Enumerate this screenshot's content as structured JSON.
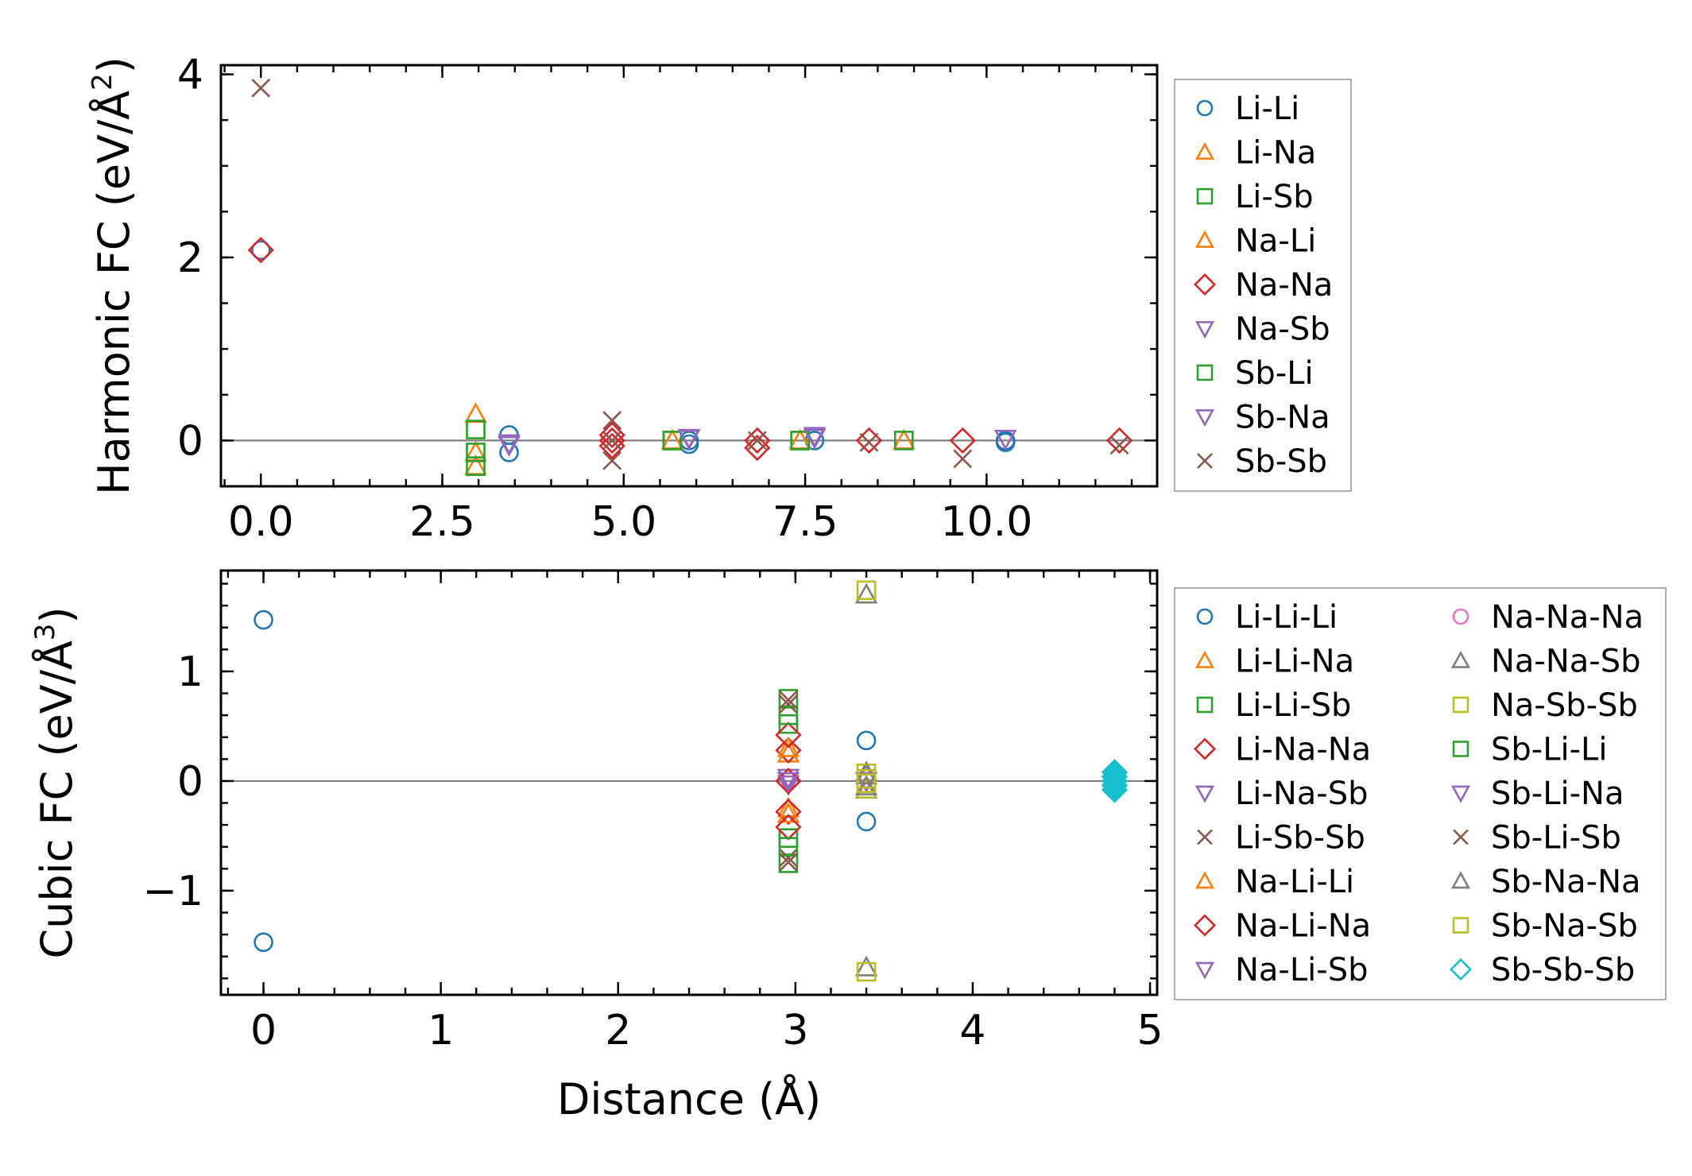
{
  "chart_data": [
    {
      "type": "scatter",
      "panel": "top",
      "ylabel": "Harmonic FC (eV/Å²)",
      "ylabel_parts": {
        "main": "Harmonic FC (eV/Å",
        "sup": "2",
        "close": ")"
      },
      "xlabel": "",
      "xlim": [
        -0.55,
        12.35
      ],
      "ylim": [
        -0.5,
        4.1
      ],
      "x_ticks": [
        0.0,
        2.5,
        5.0,
        7.5,
        10.0
      ],
      "x_tick_labels": [
        "0.0",
        "2.5",
        "5.0",
        "7.5",
        "10.0"
      ],
      "y_ticks": [
        0,
        2,
        4
      ],
      "y_tick_labels": [
        "0",
        "2",
        "4"
      ],
      "zero_line": true,
      "legend_columns": 1,
      "series": [
        {
          "name": "Li-Li",
          "marker": "circle",
          "color": "#1f77b4",
          "points": [
            [
              0.0,
              2.08
            ],
            [
              3.42,
              0.06
            ],
            [
              3.42,
              -0.13
            ],
            [
              5.9,
              0.0
            ],
            [
              5.9,
              -0.04
            ],
            [
              7.63,
              0.0
            ],
            [
              10.26,
              0.0
            ],
            [
              10.26,
              -0.02
            ]
          ]
        },
        {
          "name": "Li-Na",
          "marker": "triangle-up",
          "color": "#ff7f0e",
          "points": [
            [
              2.96,
              0.29
            ],
            [
              2.96,
              -0.13
            ],
            [
              2.96,
              -0.28
            ],
            [
              5.67,
              0.0
            ],
            [
              7.43,
              0.0
            ],
            [
              8.86,
              0.0
            ]
          ]
        },
        {
          "name": "Li-Sb",
          "marker": "square",
          "color": "#2ca02c",
          "points": [
            [
              2.96,
              0.12
            ],
            [
              2.96,
              -0.13
            ],
            [
              2.96,
              -0.28
            ],
            [
              5.67,
              0.0
            ],
            [
              7.43,
              0.0
            ],
            [
              8.86,
              0.0
            ]
          ]
        },
        {
          "name": "Na-Li",
          "marker": "triangle-up",
          "color": "#ff7f0e",
          "points": [
            [
              5.67,
              0.0
            ],
            [
              7.43,
              0.0
            ]
          ]
        },
        {
          "name": "Na-Na",
          "marker": "diamond",
          "color": "#d62728",
          "points": [
            [
              0.0,
              2.08
            ],
            [
              4.84,
              0.0
            ],
            [
              4.84,
              0.06
            ],
            [
              4.84,
              -0.06
            ],
            [
              6.84,
              0.0
            ],
            [
              6.84,
              -0.08
            ],
            [
              8.38,
              0.0
            ],
            [
              9.67,
              0.0
            ],
            [
              11.83,
              0.0
            ]
          ]
        },
        {
          "name": "Na-Sb",
          "marker": "triangle-down",
          "color": "#9467bd",
          "points": [
            [
              3.42,
              -0.03
            ],
            [
              5.9,
              0.03
            ],
            [
              7.63,
              0.05
            ],
            [
              10.26,
              0.02
            ]
          ]
        },
        {
          "name": "Sb-Li",
          "marker": "square",
          "color": "#2ca02c",
          "points": [
            [
              5.67,
              0.0
            ],
            [
              7.43,
              0.0
            ]
          ]
        },
        {
          "name": "Sb-Na",
          "marker": "triangle-down",
          "color": "#9467bd",
          "points": [
            [
              3.42,
              -0.05
            ],
            [
              5.9,
              0.02
            ],
            [
              7.63,
              0.03
            ]
          ]
        },
        {
          "name": "Sb-Sb",
          "marker": "x",
          "color": "#8c564b",
          "points": [
            [
              0.0,
              3.85
            ],
            [
              4.84,
              0.22
            ],
            [
              4.84,
              -0.22
            ],
            [
              4.84,
              0.0
            ],
            [
              6.84,
              0.0
            ],
            [
              8.38,
              -0.02
            ],
            [
              9.67,
              -0.2
            ],
            [
              11.83,
              -0.05
            ]
          ]
        }
      ]
    },
    {
      "type": "scatter",
      "panel": "bottom",
      "ylabel": "Cubic FC (eV/Å³)",
      "ylabel_parts": {
        "main": "Cubic FC (eV/Å",
        "sup": "3",
        "close": ")"
      },
      "xlabel": "Distance (Å)",
      "xlim": [
        -0.24,
        5.04
      ],
      "ylim": [
        -1.95,
        1.92
      ],
      "x_ticks": [
        0,
        1,
        2,
        3,
        4,
        5
      ],
      "x_tick_labels": [
        "0",
        "1",
        "2",
        "3",
        "4",
        "5"
      ],
      "y_ticks": [
        -1,
        0,
        1
      ],
      "y_tick_labels": [
        "−1",
        "0",
        "1"
      ],
      "zero_line": true,
      "legend_columns": 2,
      "series": [
        {
          "name": "Li-Li-Li",
          "marker": "circle",
          "color": "#1f77b4",
          "points": [
            [
              0.0,
              1.47
            ],
            [
              0.0,
              -1.47
            ],
            [
              3.4,
              0.37
            ],
            [
              3.4,
              -0.37
            ]
          ]
        },
        {
          "name": "Li-Li-Na",
          "marker": "triangle-up",
          "color": "#ff7f0e",
          "points": [
            [
              2.96,
              0.25
            ],
            [
              2.96,
              -0.25
            ]
          ]
        },
        {
          "name": "Li-Li-Sb",
          "marker": "square",
          "color": "#2ca02c",
          "points": [
            [
              2.96,
              0.75
            ],
            [
              2.96,
              0.52
            ],
            [
              2.96,
              -0.52
            ],
            [
              2.96,
              -0.75
            ]
          ]
        },
        {
          "name": "Li-Na-Na",
          "marker": "diamond",
          "color": "#d62728",
          "points": [
            [
              2.96,
              0.28
            ],
            [
              2.96,
              0.0
            ],
            [
              2.96,
              -0.28
            ]
          ]
        },
        {
          "name": "Li-Na-Sb",
          "marker": "triangle-down",
          "color": "#9467bd",
          "points": [
            [
              2.96,
              0.03
            ],
            [
              2.96,
              -0.03
            ]
          ]
        },
        {
          "name": "Li-Sb-Sb",
          "marker": "x",
          "color": "#8c564b",
          "points": [
            [
              2.96,
              0.7
            ],
            [
              2.96,
              -0.7
            ]
          ]
        },
        {
          "name": "Na-Li-Li",
          "marker": "triangle-up",
          "color": "#ff7f0e",
          "points": [
            [
              2.96,
              0.3
            ],
            [
              2.96,
              -0.3
            ]
          ]
        },
        {
          "name": "Na-Li-Na",
          "marker": "diamond",
          "color": "#d62728",
          "points": [
            [
              2.96,
              0.42
            ],
            [
              2.96,
              0.0
            ],
            [
              2.96,
              -0.42
            ]
          ]
        },
        {
          "name": "Na-Li-Sb",
          "marker": "triangle-down",
          "color": "#9467bd",
          "points": [
            [
              2.96,
              0.0
            ]
          ]
        },
        {
          "name": "Na-Na-Na",
          "marker": "circle",
          "color": "#e377c2",
          "points": []
        },
        {
          "name": "Na-Na-Sb",
          "marker": "triangle-up",
          "color": "#7f7f7f",
          "points": [
            [
              3.4,
              1.7
            ],
            [
              3.4,
              -1.7
            ],
            [
              3.4,
              0.08
            ],
            [
              3.4,
              -0.08
            ]
          ]
        },
        {
          "name": "Na-Sb-Sb",
          "marker": "square",
          "color": "#bcbd22",
          "points": [
            [
              3.4,
              1.74
            ],
            [
              3.4,
              -1.74
            ],
            [
              3.4,
              0.07
            ],
            [
              3.4,
              -0.07
            ]
          ]
        },
        {
          "name": "Sb-Li-Li",
          "marker": "square",
          "color": "#2ca02c",
          "points": [
            [
              2.96,
              0.6
            ],
            [
              2.96,
              -0.6
            ]
          ]
        },
        {
          "name": "Sb-Li-Na",
          "marker": "triangle-down",
          "color": "#9467bd",
          "points": [
            [
              3.4,
              0.0
            ]
          ]
        },
        {
          "name": "Sb-Li-Sb",
          "marker": "x",
          "color": "#8c564b",
          "points": [
            [
              2.96,
              0.74
            ],
            [
              2.96,
              -0.74
            ]
          ]
        },
        {
          "name": "Sb-Na-Na",
          "marker": "triangle-up",
          "color": "#7f7f7f",
          "points": [
            [
              3.4,
              0.05
            ],
            [
              3.4,
              -0.05
            ]
          ]
        },
        {
          "name": "Sb-Na-Sb",
          "marker": "square",
          "color": "#bcbd22",
          "points": [
            [
              3.4,
              0.02
            ],
            [
              3.4,
              -0.02
            ]
          ]
        },
        {
          "name": "Sb-Sb-Sb",
          "marker": "diamond-filled",
          "color": "#17becf",
          "points": [
            [
              4.8,
              0.0
            ],
            [
              4.8,
              0.04
            ],
            [
              4.8,
              -0.04
            ],
            [
              4.8,
              0.08
            ],
            [
              4.8,
              -0.08
            ]
          ]
        }
      ]
    }
  ]
}
